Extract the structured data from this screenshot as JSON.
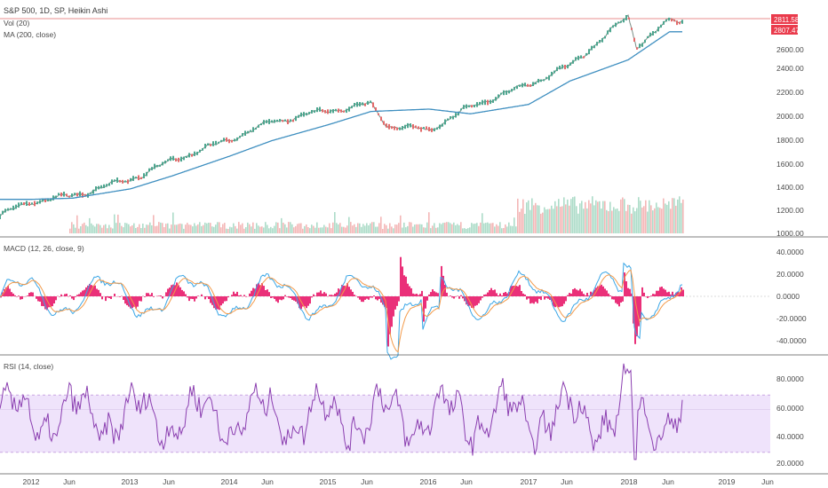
{
  "colors": {
    "candle_up": "#4ca68f",
    "candle_down": "#e36a6a",
    "ma_line": "#3f8fc0",
    "macd_line": "#3aa6e6",
    "signal_line": "#f39a4a",
    "histogram": "#e8196a",
    "rsi_line": "#8b3fb0",
    "rsi_band": "#efe3fb",
    "price_tag": "#ea3b4c"
  },
  "main_pane": {
    "title": "S&P 500, 1D, SP, Heikin Ashi",
    "indicators": [
      "Vol (20)",
      "MA (200, close)"
    ],
    "price_tags": [
      "2811.58",
      "2807.47"
    ],
    "y_ticks": [
      "2600.00",
      "2400.00",
      "2200.00",
      "2000.00",
      "1800.00",
      "1600.00",
      "1400.00",
      "1200.00",
      "1000.00"
    ]
  },
  "macd_pane": {
    "title": "MACD (12, 26, close, 9)",
    "y_ticks": [
      "40.0000",
      "20.0000",
      "0.0000",
      "-20.0000",
      "-40.0000"
    ]
  },
  "rsi_pane": {
    "title": "RSI (14, close)",
    "y_ticks": [
      "80.0000",
      "60.0000",
      "40.0000",
      "20.0000"
    ]
  },
  "x_axis": {
    "labels": [
      "2012",
      "Jun",
      "2013",
      "Jun",
      "2014",
      "Jun",
      "2015",
      "Jun",
      "2016",
      "Jun",
      "2017",
      "Jun",
      "2018",
      "Jun",
      "2019",
      "Jun"
    ]
  },
  "chart_data": [
    {
      "type": "line",
      "title": "S&P 500, 1D, SP, Heikin Ashi",
      "series": [
        {
          "name": "S&P 500",
          "x": [
            "2012-01",
            "2012-06",
            "2013-01",
            "2013-06",
            "2014-01",
            "2014-06",
            "2015-01",
            "2015-06",
            "2015-08",
            "2016-01",
            "2016-06",
            "2017-01",
            "2017-06",
            "2018-01",
            "2018-02",
            "2018-06"
          ],
          "values": [
            1270,
            1320,
            1460,
            1620,
            1800,
            1950,
            2050,
            2100,
            1920,
            1880,
            2080,
            2270,
            2430,
            2850,
            2600,
            2810
          ]
        },
        {
          "name": "MA (200, close)",
          "x": [
            "2012-01",
            "2012-06",
            "2013-01",
            "2013-06",
            "2014-01",
            "2014-06",
            "2015-01",
            "2015-06",
            "2016-01",
            "2016-06",
            "2017-01",
            "2017-06",
            "2018-01",
            "2018-06"
          ],
          "values": [
            1290,
            1300,
            1380,
            1490,
            1660,
            1790,
            1930,
            2040,
            2060,
            2020,
            2100,
            2300,
            2480,
            2720
          ]
        }
      ],
      "y_range": [
        1000,
        2900
      ]
    },
    {
      "type": "line",
      "title": "MACD (12, 26, close, 9)",
      "y_range": [
        -50,
        50
      ]
    },
    {
      "type": "line",
      "title": "RSI (14, close)",
      "y_range": [
        15,
        95
      ],
      "band": [
        30,
        70
      ]
    }
  ]
}
